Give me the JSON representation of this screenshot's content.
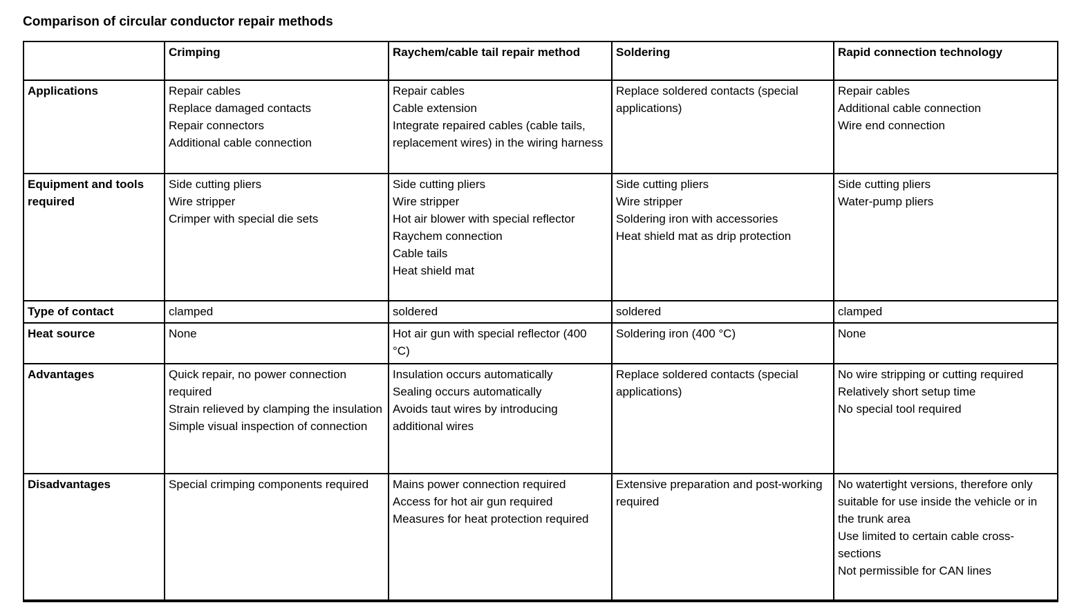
{
  "title": "Comparison of circular conductor repair methods",
  "table": {
    "columns": [
      "",
      "Crimping",
      "Raychem/cable tail repair method",
      "Soldering",
      "Rapid connection technology"
    ],
    "rows": [
      {
        "label": "Applications",
        "cells": [
          [
            "Repair cables",
            "Replace damaged contacts",
            "Repair connectors",
            "Additional cable connection"
          ],
          [
            "Repair cables",
            "Cable extension",
            "Integrate repaired cables (cable tails, replacement wires) in the wiring harness"
          ],
          [
            "Replace soldered contacts (special applications)"
          ],
          [
            "Repair cables",
            "Additional cable connection",
            "Wire end connection"
          ]
        ]
      },
      {
        "label": "Equipment and tools required",
        "cells": [
          [
            "Side cutting pliers",
            "Wire stripper",
            "Crimper with special die sets"
          ],
          [
            "Side cutting pliers",
            "Wire stripper",
            "Hot air blower with special reflector",
            "Raychem connection",
            "Cable tails",
            "Heat shield mat"
          ],
          [
            "Side cutting pliers",
            "Wire stripper",
            "Soldering iron with accessories",
            "Heat shield mat as drip protection"
          ],
          [
            "Side cutting pliers",
            "Water-pump pliers"
          ]
        ]
      },
      {
        "label": "Type of contact",
        "cells": [
          [
            "clamped"
          ],
          [
            "soldered"
          ],
          [
            "soldered"
          ],
          [
            "clamped"
          ]
        ]
      },
      {
        "label": "Heat source",
        "cells": [
          [
            "None"
          ],
          [
            "Hot air gun with special reflector (400 °C)"
          ],
          [
            "Soldering iron (400 °C)"
          ],
          [
            "None"
          ]
        ]
      },
      {
        "label": "Advantages",
        "cells": [
          [
            "Quick repair, no power connection required",
            "Strain relieved by clamping the insulation",
            "Simple visual inspection of connection"
          ],
          [
            "Insulation occurs automatically",
            "Sealing occurs automatically",
            "Avoids taut wires by introducing additional wires"
          ],
          [
            "Replace soldered contacts (special applications)"
          ],
          [
            "No wire stripping or cutting required",
            "Relatively short setup time",
            "No special tool required"
          ]
        ]
      },
      {
        "label": "Disadvantages",
        "cells": [
          [
            "Special crimping components required"
          ],
          [
            "Mains power connection required",
            "Access for hot air gun required",
            "Measures for heat protection required"
          ],
          [
            "Extensive preparation and post-working required"
          ],
          [
            "No watertight versions, therefore only suitable for use inside the vehicle or in the trunk area",
            "Use limited to certain cable cross-sections",
            "Not permissible for CAN lines"
          ]
        ]
      }
    ]
  }
}
